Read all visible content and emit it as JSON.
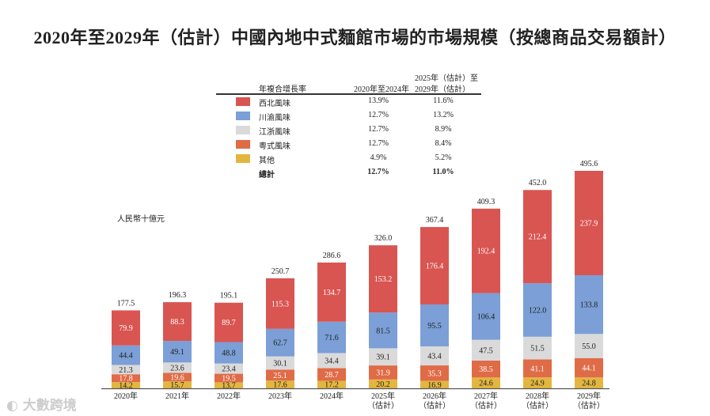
{
  "chart_data": {
    "type": "bar",
    "stacked": true,
    "title": "2020年至2029年（估計）中國內地中式麵館市場的市場規模（按總商品交易額計）",
    "ylabel": "人民幣十億元",
    "categories": [
      "2020年",
      "2021年",
      "2022年",
      "2023年",
      "2024年",
      "2025年\n（估計）",
      "2026年\n（估計）",
      "2027年\n（估計）",
      "2028年\n（估計）",
      "2029年\n（估計）"
    ],
    "series": [
      {
        "name": "其他",
        "color": "#e3b640",
        "label_color": "#222",
        "values": [
          14.2,
          15.7,
          13.7,
          17.6,
          17.2,
          20.2,
          16.9,
          24.6,
          24.9,
          24.8
        ]
      },
      {
        "name": "粵式風味",
        "color": "#e06b47",
        "label_color": "#fff",
        "values": [
          17.8,
          19.6,
          19.5,
          25.1,
          28.7,
          31.9,
          35.3,
          38.5,
          41.1,
          44.1
        ]
      },
      {
        "name": "江浙風味",
        "color": "#dadada",
        "label_color": "#222",
        "values": [
          21.3,
          23.6,
          23.4,
          30.1,
          34.4,
          39.1,
          43.4,
          47.5,
          51.5,
          55.0
        ]
      },
      {
        "name": "川渝風味",
        "color": "#7b9fd6",
        "label_color": "#222",
        "values": [
          44.4,
          49.1,
          48.8,
          62.7,
          71.6,
          81.5,
          95.5,
          106.4,
          122.0,
          133.8
        ]
      },
      {
        "name": "西北風味",
        "color": "#d95551",
        "label_color": "#fff",
        "values": [
          79.9,
          88.3,
          89.7,
          115.3,
          134.7,
          153.2,
          176.4,
          192.4,
          212.4,
          237.9
        ]
      }
    ],
    "totals": [
      177.5,
      196.3,
      195.1,
      250.7,
      286.6,
      326.0,
      367.4,
      409.3,
      452.0,
      495.6
    ],
    "ylim": [
      0,
      500
    ],
    "grid": false
  },
  "legend": {
    "header_label": "年複合增長率",
    "col1": "2020年至2024年",
    "col2_line1": "2025年（估計）至",
    "col2_line2": "2029年（估計）",
    "rows": [
      {
        "name": "西北風味",
        "color": "#d95551",
        "c1": "13.9%",
        "c2": "11.6%"
      },
      {
        "name": "川渝風味",
        "color": "#7b9fd6",
        "c1": "12.7%",
        "c2": "13.2%"
      },
      {
        "name": "江浙風味",
        "color": "#dadada",
        "c1": "12.7%",
        "c2": "8.9%"
      },
      {
        "name": "粵式風味",
        "color": "#e06b47",
        "c1": "12.7%",
        "c2": "8.4%"
      },
      {
        "name": "其他",
        "color": "#e3b640",
        "c1": "4.9%",
        "c2": "5.2%"
      }
    ],
    "total": {
      "name": "總計",
      "c1": "12.7%",
      "c2": "11.0%"
    }
  },
  "watermark": "大數跨境"
}
